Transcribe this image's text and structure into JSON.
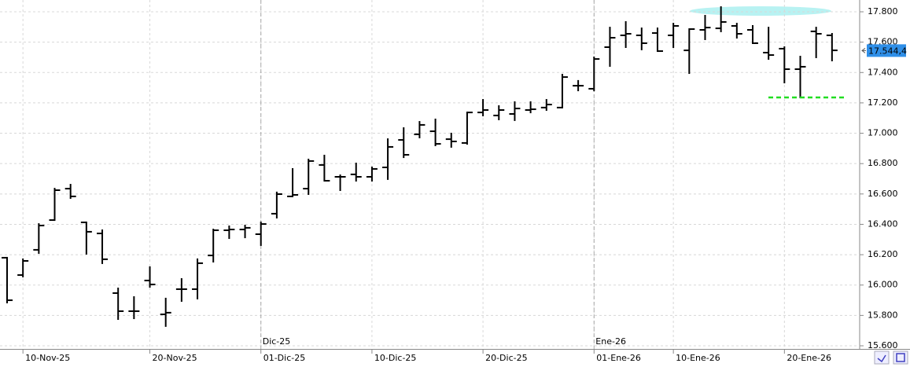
{
  "chart_data": {
    "type": "ohlc",
    "color": "#000000",
    "categories": [
      null,
      "10-Nov-25",
      null,
      null,
      null,
      null,
      null,
      null,
      null,
      "20-Nov-25",
      null,
      null,
      null,
      null,
      null,
      null,
      "01-Dic-25",
      null,
      null,
      null,
      null,
      null,
      null,
      "10-Dic-25",
      null,
      null,
      null,
      null,
      null,
      null,
      "20-Dic-25",
      null,
      null,
      null,
      null,
      null,
      null,
      "01-Ene-26",
      null,
      null,
      null,
      null,
      "10-Ene-26",
      null,
      null,
      null,
      null,
      null,
      null,
      "20-Ene-26",
      null,
      null,
      null
    ],
    "month_labels": [
      null,
      null,
      null,
      null,
      null,
      null,
      null,
      null,
      null,
      null,
      null,
      null,
      null,
      null,
      null,
      null,
      "Dic-25",
      null,
      null,
      null,
      null,
      null,
      null,
      null,
      null,
      null,
      null,
      null,
      null,
      null,
      null,
      null,
      null,
      null,
      null,
      null,
      null,
      "Ene-26",
      null,
      null,
      null,
      null,
      null,
      null,
      null,
      null,
      null,
      null,
      null,
      null,
      null,
      null,
      null
    ],
    "open": [
      16180,
      16066,
      16232,
      16428,
      16635,
      16413,
      16340,
      15947,
      15828,
      16030,
      15807,
      15973,
      15973,
      16195,
      16361,
      16366,
      16335,
      16470,
      16584,
      16635,
      16791,
      16713,
      16729,
      16713,
      16775,
      16956,
      16993,
      17013,
      16961,
      16936,
      17137,
      17117,
      17127,
      17153,
      17169,
      17169,
      17313,
      17293,
      17567,
      17645,
      17645,
      17660,
      17645,
      17546,
      17681,
      17691,
      17707,
      17681,
      17531,
      17557,
      17422,
      17671,
      17645
    ],
    "high": [
      16180,
      16170,
      16402,
      16635,
      16661,
      16413,
      16361,
      15978,
      15921,
      16118,
      15911,
      16040,
      16170,
      16366,
      16387,
      16392,
      16413,
      16610,
      16765,
      16827,
      16853,
      16723,
      16801,
      16775,
      16961,
      17034,
      17075,
      17091,
      16998,
      17137,
      17220,
      17179,
      17205,
      17205,
      17220,
      17386,
      17345,
      17500,
      17696,
      17733,
      17691,
      17691,
      17722,
      17686,
      17774,
      17831,
      17722,
      17707,
      17696,
      17567,
      17505,
      17696,
      17655
    ],
    "low": [
      15885,
      16056,
      16211,
      16428,
      16573,
      16206,
      16144,
      15776,
      15781,
      15988,
      15730,
      15895,
      15911,
      16154,
      16309,
      16314,
      16263,
      16444,
      16584,
      16599,
      16687,
      16625,
      16687,
      16687,
      16698,
      16842,
      16972,
      16920,
      16910,
      16930,
      17117,
      17091,
      17086,
      17137,
      17153,
      17169,
      17282,
      17282,
      17443,
      17567,
      17552,
      17541,
      17567,
      17396,
      17619,
      17671,
      17629,
      17593,
      17489,
      17334,
      17236,
      17500,
      17479
    ],
    "close": [
      15900,
      16159,
      16392,
      16625,
      16584,
      16351,
      16170,
      15828,
      15828,
      16004,
      15818,
      15973,
      16144,
      16361,
      16366,
      16377,
      16402,
      16599,
      16594,
      16817,
      16687,
      16713,
      16713,
      16765,
      16910,
      16858,
      17055,
      16930,
      16946,
      17137,
      17153,
      17153,
      17163,
      17158,
      17189,
      17370,
      17313,
      17489,
      17629,
      17655,
      17593,
      17541,
      17707,
      17686,
      17696,
      17733,
      17655,
      17593,
      17515,
      17422,
      17438,
      17655,
      17546
    ],
    "ylim": [
      15600,
      17800
    ],
    "yticks": [
      {
        "value": 15600,
        "label": "15.600"
      },
      {
        "value": 15800,
        "label": "15.800"
      },
      {
        "value": 16000,
        "label": "16.000"
      },
      {
        "value": 16200,
        "label": "16.200"
      },
      {
        "value": 16400,
        "label": "16.400"
      },
      {
        "value": 16600,
        "label": "16.600"
      },
      {
        "value": 16800,
        "label": "16.800"
      },
      {
        "value": 17000,
        "label": "17.000"
      },
      {
        "value": 17200,
        "label": "17.200"
      },
      {
        "value": 17400,
        "label": "17.400"
      },
      {
        "value": 17600,
        "label": "17.600"
      },
      {
        "value": 17800,
        "label": "17.800"
      }
    ],
    "grid": true,
    "last_price": {
      "value": 17544.4,
      "label": "17.544,4",
      "color": "#2f8fe8"
    },
    "support_line": {
      "value": 17236,
      "color": "#22dd22"
    }
  }
}
